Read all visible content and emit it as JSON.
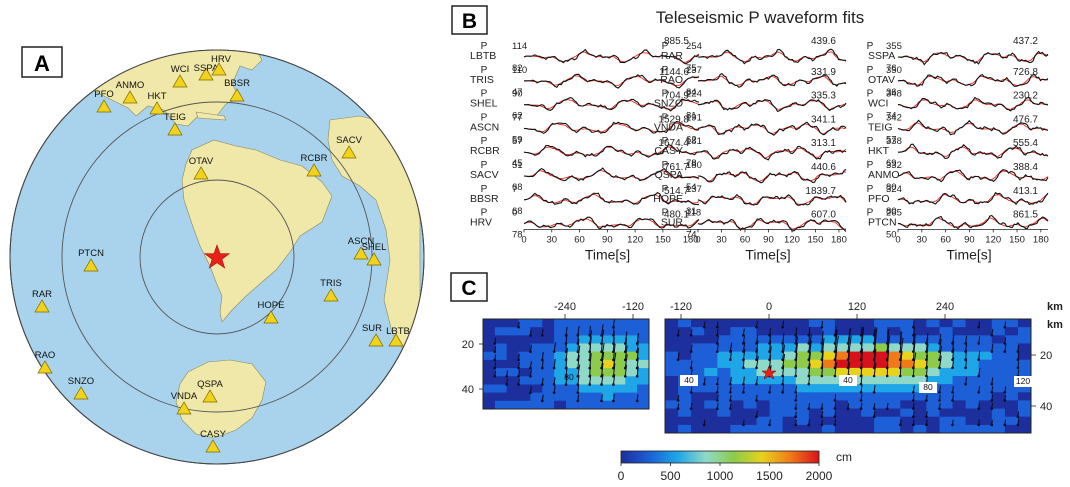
{
  "panel_letters": {
    "a": "A",
    "b": "B",
    "c": "C"
  },
  "map": {
    "ocean_color": "#a9d3ec",
    "land_color": "#f0e8a8",
    "station_color": "#f3d21b",
    "epicenter_color": "#e8201a",
    "stations": [
      {
        "code": "PFO"
      },
      {
        "code": "ANMO"
      },
      {
        "code": "HKT"
      },
      {
        "code": "WCI"
      },
      {
        "code": "SSPA"
      },
      {
        "code": "HRV"
      },
      {
        "code": "BBSR"
      },
      {
        "code": "TEIG"
      },
      {
        "code": "SACV"
      },
      {
        "code": "OTAV"
      },
      {
        "code": "RCBR"
      },
      {
        "code": "ASCN"
      },
      {
        "code": "SHEL"
      },
      {
        "code": "PTCN"
      },
      {
        "code": "TRIS"
      },
      {
        "code": "RAR"
      },
      {
        "code": "HOPE"
      },
      {
        "code": "LBTB"
      },
      {
        "code": "SUR"
      },
      {
        "code": "RAO"
      },
      {
        "code": "SNZO"
      },
      {
        "code": "QSPA"
      },
      {
        "code": "VNDA"
      },
      {
        "code": "CASY"
      }
    ]
  },
  "waveforms": {
    "title": "Teleseismic P waveform fits",
    "phase_label": "P",
    "xlabel": "Time[s]",
    "xticks": [
      "0",
      "30",
      "60",
      "90",
      "120",
      "150",
      "180"
    ],
    "observed_color": "#111111",
    "synthetic_color": "#e8281e",
    "columns": [
      {
        "traces": [
          {
            "station": "LBTB",
            "az": "114",
            "dist": "82",
            "amp": "885.5"
          },
          {
            "station": "TRIS",
            "az": "110",
            "dist": "47",
            "amp": "1144.6"
          },
          {
            "station": "SHEL",
            "az": "90",
            "dist": "62",
            "amp": "704.9"
          },
          {
            "station": "ASCN",
            "az": "77",
            "dist": "59",
            "amp": "1529.8"
          },
          {
            "station": "RCBR",
            "az": "57",
            "dist": "45",
            "amp": "1674.4"
          },
          {
            "station": "SACV",
            "az": "51",
            "dist": "68",
            "amp": "761.7"
          },
          {
            "station": "BBSR",
            "az": "7",
            "dist": "68",
            "amp": "514.7"
          },
          {
            "station": "HRV",
            "az": "0",
            "dist": "78",
            "amp": "480.1"
          }
        ]
      },
      {
        "traces": [
          {
            "station": "RAR",
            "az": "254",
            "dist": "75",
            "amp": "439.6"
          },
          {
            "station": "RAO",
            "az": "237",
            "dist": "84",
            "amp": "331.9"
          },
          {
            "station": "SNZO",
            "az": "224",
            "dist": "81",
            "amp": "335.3"
          },
          {
            "station": "VNDA",
            "az": "191",
            "dist": "62",
            "amp": "341.1"
          },
          {
            "station": "CASY",
            "az": "181",
            "dist": "78",
            "amp": "313.1"
          },
          {
            "station": "QSPA",
            "az": "180",
            "dist": "54",
            "amp": "440.6"
          },
          {
            "station": "HOPE",
            "az": "137",
            "dist": "31",
            "amp": "1839.7"
          },
          {
            "station": "SUR",
            "az": "118",
            "dist": "74",
            "amp": "607.0"
          }
        ]
      },
      {
        "traces": [
          {
            "station": "SSPA",
            "az": "355",
            "dist": "76",
            "amp": "437.2"
          },
          {
            "station": "OTAV",
            "az": "350",
            "dist": "36",
            "amp": "726.8"
          },
          {
            "station": "WCI",
            "az": "348",
            "dist": "74",
            "amp": "230.2"
          },
          {
            "station": "TEIG",
            "az": "342",
            "dist": "57",
            "amp": "476.7"
          },
          {
            "station": "HKT",
            "az": "338",
            "dist": "69",
            "amp": "555.4"
          },
          {
            "station": "ANMO",
            "az": "332",
            "dist": "80",
            "amp": "388.4"
          },
          {
            "station": "PFO",
            "az": "324",
            "dist": "80",
            "amp": "413.1"
          },
          {
            "station": "PTCN",
            "az": "265",
            "dist": "50",
            "amp": "861.5"
          }
        ]
      }
    ]
  },
  "slip": {
    "top_ticks_left": [
      "-240",
      "-120"
    ],
    "top_ticks_right": [
      "-120",
      "0",
      "120",
      "240"
    ],
    "unit_label": "km",
    "depth_ticks": [
      "20",
      "40"
    ],
    "contour_labels_left": [
      "80"
    ],
    "contour_labels_right": [
      "40",
      "40",
      "80",
      "120"
    ],
    "colorbar": {
      "unit": "cm",
      "ticks": [
        "0",
        "500",
        "1000",
        "1500",
        "2000"
      ],
      "colors": [
        "#1c2f9c",
        "#1c5fd6",
        "#1ea6e8",
        "#8fd9c8",
        "#8ccc4a",
        "#e8d21c",
        "#f07a18",
        "#d8121a"
      ]
    }
  }
}
